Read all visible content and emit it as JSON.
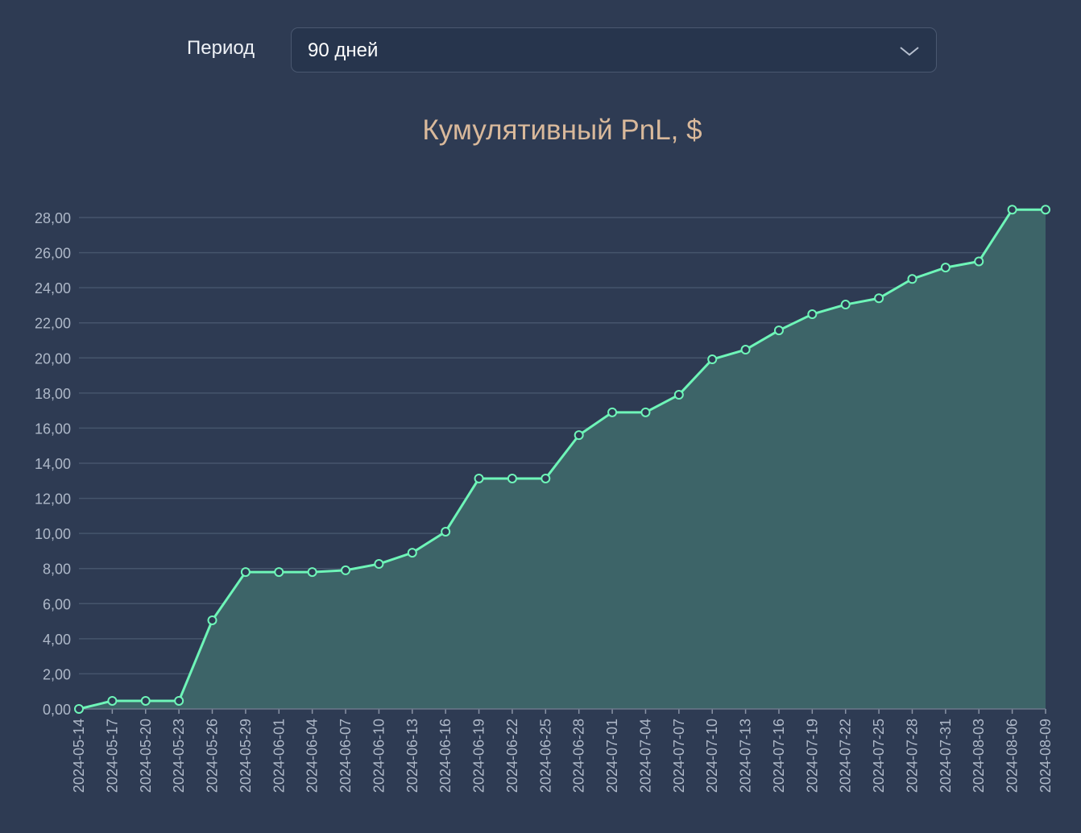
{
  "controls": {
    "period_label": "Период",
    "period_value": "90 дней"
  },
  "colors": {
    "background": "#2e3b53",
    "line": "#6ef5b8",
    "area": "#3d6468",
    "title": "#d9b99b",
    "grid": "#46556c"
  },
  "chart_data": {
    "type": "area",
    "title": "Кумулятивный PnL, $",
    "xlabel": "",
    "ylabel": "",
    "ylim": [
      0,
      28
    ],
    "yticks": [
      0,
      2,
      4,
      6,
      8,
      10,
      12,
      14,
      16,
      18,
      20,
      22,
      24,
      26,
      28
    ],
    "ytick_labels": [
      "0,00",
      "2,00",
      "4,00",
      "6,00",
      "8,00",
      "10,00",
      "12,00",
      "14,00",
      "16,00",
      "18,00",
      "20,00",
      "22,00",
      "24,00",
      "26,00",
      "28,00"
    ],
    "grid": true,
    "categories": [
      "2024-05-14",
      "2024-05-17",
      "2024-05-20",
      "2024-05-23",
      "2024-05-26",
      "2024-05-29",
      "2024-06-01",
      "2024-06-04",
      "2024-06-07",
      "2024-06-10",
      "2024-06-13",
      "2024-06-16",
      "2024-06-19",
      "2024-06-22",
      "2024-06-25",
      "2024-06-28",
      "2024-07-01",
      "2024-07-04",
      "2024-07-07",
      "2024-07-10",
      "2024-07-13",
      "2024-07-16",
      "2024-07-19",
      "2024-07-22",
      "2024-07-25",
      "2024-07-28",
      "2024-07-31",
      "2024-08-03",
      "2024-08-06",
      "2024-08-09"
    ],
    "series": [
      {
        "name": "Кумулятивный PnL",
        "values": [
          0,
          0.46,
          0.46,
          0.46,
          5.05,
          7.8,
          7.8,
          7.8,
          7.9,
          8.26,
          8.9,
          10.1,
          13.13,
          13.13,
          13.13,
          15.6,
          16.9,
          16.9,
          17.9,
          19.92,
          20.47,
          21.57,
          22.49,
          23.04,
          23.4,
          24.5,
          25.15,
          25.5,
          28.45,
          28.45
        ]
      }
    ]
  }
}
